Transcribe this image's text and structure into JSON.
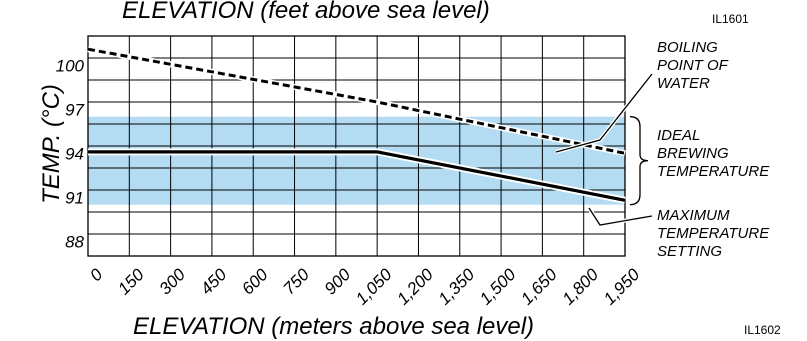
{
  "chart_data": {
    "type": "line",
    "title_top": "ELEVATION (feet above sea level)",
    "xlabel": "ELEVATION (meters above sea level)",
    "ylabel": "TEMP. (°C)",
    "figure_codes": [
      "IL1601",
      "IL1602"
    ],
    "xlim": [
      0,
      1950
    ],
    "ylim": [
      87,
      102
    ],
    "x_ticks": [
      "0",
      "150",
      "300",
      "450",
      "600",
      "750",
      "900",
      "1,050",
      "1,200",
      "1,350",
      "1,500",
      "1,650",
      "1,800",
      "1,950"
    ],
    "y_ticks": [
      {
        "value": 88,
        "label": "88"
      },
      {
        "value": 91,
        "label": "91"
      },
      {
        "value": 94,
        "label": "94"
      },
      {
        "value": 97,
        "label": "97"
      },
      {
        "value": 100,
        "label": "100"
      }
    ],
    "band": {
      "y_min": 90.5,
      "y_max": 96.5,
      "color": "#b3dcf3"
    },
    "series": [
      {
        "name": "BOILING POINT OF WATER",
        "style": "dashed",
        "points": [
          [
            0,
            101.1
          ],
          [
            1050,
            97.5
          ],
          [
            1950,
            94.0
          ]
        ]
      },
      {
        "name": "MAXIMUM TEMPERATURE SETTING",
        "style": "solid",
        "points": [
          [
            0,
            94.1
          ],
          [
            1050,
            94.1
          ],
          [
            1950,
            90.8
          ]
        ]
      }
    ],
    "annotations": [
      {
        "lines": [
          "BOILING",
          "POINT OF",
          "WATER"
        ]
      },
      {
        "lines": [
          "IDEAL",
          "BREWING",
          "TEMPERATURE"
        ]
      },
      {
        "lines": [
          "MAXIMUM",
          "TEMPERATURE",
          "SETTING"
        ]
      }
    ]
  }
}
